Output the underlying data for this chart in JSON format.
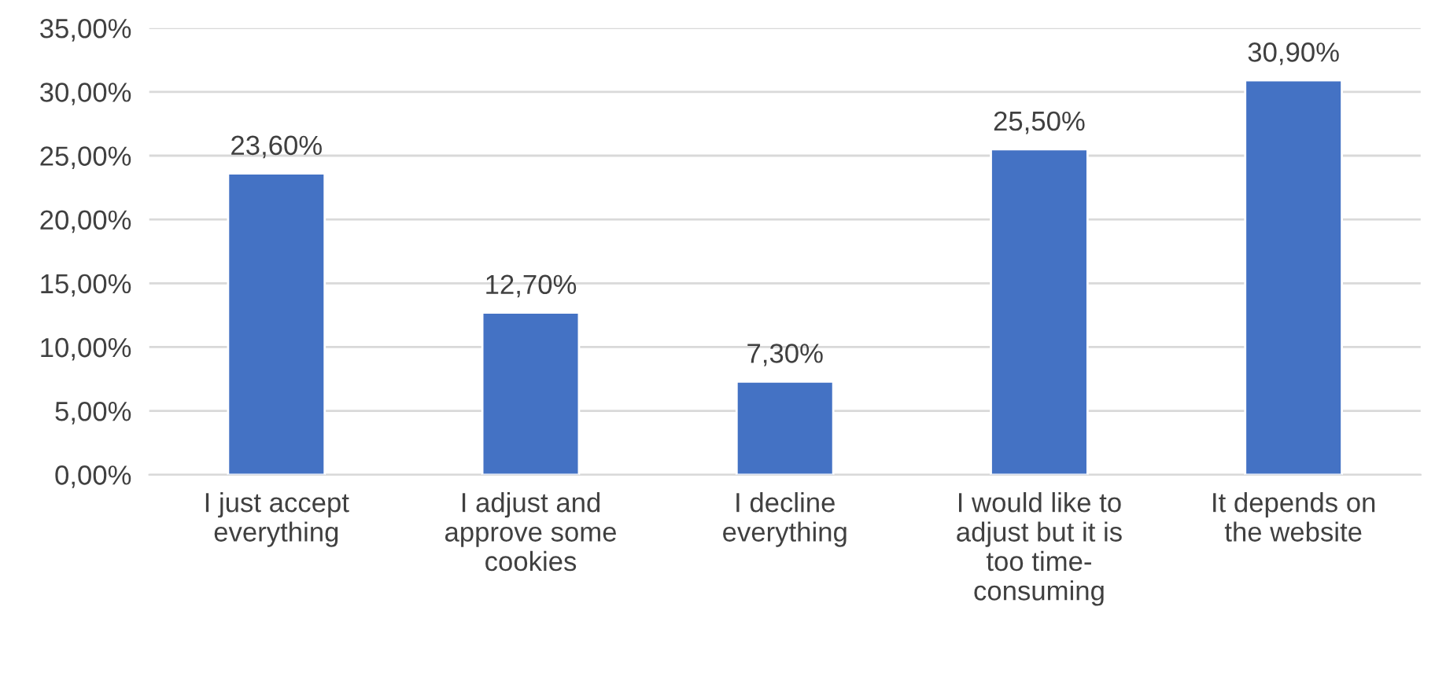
{
  "chart_data": {
    "type": "bar",
    "categories": [
      "I just accept\neverything",
      "I adjust and\napprove some\ncookies",
      "I decline\neverything",
      "I would like to\nadjust but it is\ntoo time-\nconsuming",
      "It depends on\nthe website"
    ],
    "values": [
      23.6,
      12.7,
      7.3,
      25.5,
      30.9
    ],
    "value_labels": [
      "23,60%",
      "12,70%",
      "7,30%",
      "25,50%",
      "30,90%"
    ],
    "color": "#4472c4",
    "ylim": [
      0,
      35
    ],
    "yticks": [
      {
        "value": 0,
        "label": "0,00%"
      },
      {
        "value": 5,
        "label": "5,00%"
      },
      {
        "value": 10,
        "label": "10,00%"
      },
      {
        "value": 15,
        "label": "15,00%"
      },
      {
        "value": 20,
        "label": "20,00%"
      },
      {
        "value": 25,
        "label": "25,00%"
      },
      {
        "value": 30,
        "label": "30,00%"
      },
      {
        "value": 35,
        "label": "35,00%"
      }
    ],
    "grid": "y"
  }
}
